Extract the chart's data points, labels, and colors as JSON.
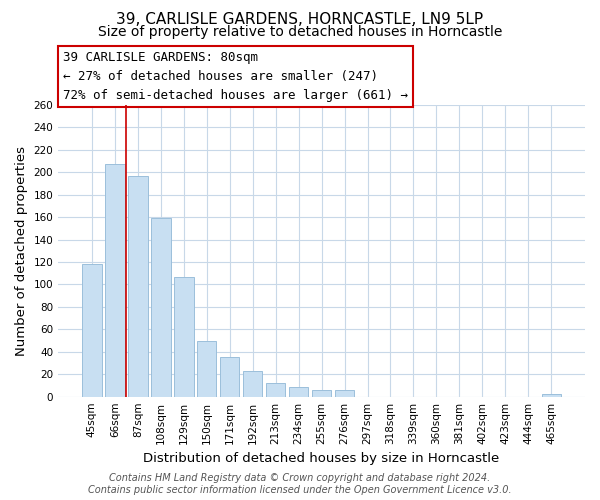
{
  "title": "39, CARLISLE GARDENS, HORNCASTLE, LN9 5LP",
  "subtitle": "Size of property relative to detached houses in Horncastle",
  "xlabel": "Distribution of detached houses by size in Horncastle",
  "ylabel": "Number of detached properties",
  "bar_labels": [
    "45sqm",
    "66sqm",
    "87sqm",
    "108sqm",
    "129sqm",
    "150sqm",
    "171sqm",
    "192sqm",
    "213sqm",
    "234sqm",
    "255sqm",
    "276sqm",
    "297sqm",
    "318sqm",
    "339sqm",
    "360sqm",
    "381sqm",
    "402sqm",
    "423sqm",
    "444sqm",
    "465sqm"
  ],
  "bar_values": [
    118,
    207,
    197,
    159,
    107,
    50,
    35,
    23,
    12,
    9,
    6,
    6,
    0,
    0,
    0,
    0,
    0,
    0,
    0,
    0,
    2
  ],
  "bar_color": "#c8dff2",
  "bar_edge_color": "#9bbfdb",
  "annotation_text": "39 CARLISLE GARDENS: 80sqm\n← 27% of detached houses are smaller (247)\n72% of semi-detached houses are larger (661) →",
  "annotation_box_color": "#ffffff",
  "annotation_box_edge": "#cc0000",
  "ylim": [
    0,
    260
  ],
  "yticks": [
    0,
    20,
    40,
    60,
    80,
    100,
    120,
    140,
    160,
    180,
    200,
    220,
    240,
    260
  ],
  "footer_line1": "Contains HM Land Registry data © Crown copyright and database right 2024.",
  "footer_line2": "Contains public sector information licensed under the Open Government Licence v3.0.",
  "bg_color": "#ffffff",
  "grid_color": "#c8d8e8",
  "title_fontsize": 11,
  "subtitle_fontsize": 10,
  "axis_label_fontsize": 9.5,
  "tick_fontsize": 7.5,
  "footer_fontsize": 7,
  "annotation_fontsize": 9
}
